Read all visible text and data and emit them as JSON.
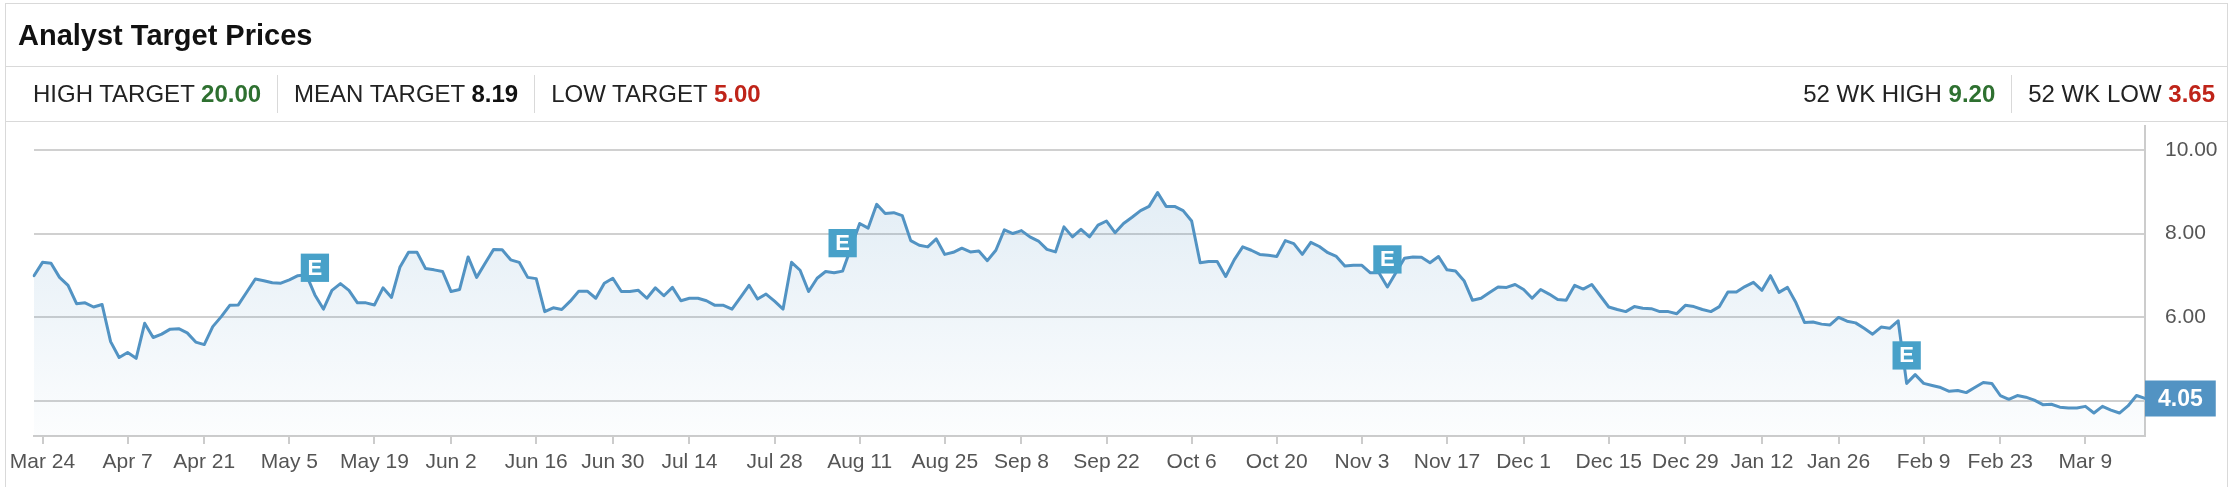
{
  "chart_data": {
    "type": "area",
    "title": "Analyst Target Prices",
    "annotations": [
      "HIGH TARGET 20.00",
      "MEAN TARGET 8.19",
      "LOW TARGET 5.00",
      "52 WK HIGH 9.20",
      "52 WK LOW 3.65"
    ],
    "categories": [
      null,
      "Mar 24",
      null,
      null,
      null,
      null,
      null,
      null,
      null,
      null,
      null,
      "Apr 7",
      null,
      null,
      null,
      null,
      null,
      null,
      null,
      null,
      "Apr 21",
      null,
      null,
      null,
      null,
      null,
      null,
      null,
      null,
      null,
      "May 5",
      null,
      null,
      null,
      null,
      null,
      null,
      null,
      null,
      null,
      "May 19",
      null,
      null,
      null,
      null,
      null,
      null,
      null,
      null,
      "Jun 2",
      null,
      null,
      null,
      null,
      null,
      null,
      null,
      null,
      null,
      "Jun 16",
      null,
      null,
      null,
      null,
      null,
      null,
      null,
      null,
      "Jun 30",
      null,
      null,
      null,
      null,
      null,
      null,
      null,
      null,
      "Jul 14",
      null,
      null,
      null,
      null,
      null,
      null,
      null,
      null,
      null,
      "Jul 28",
      null,
      null,
      null,
      null,
      null,
      null,
      null,
      null,
      null,
      "Aug 11",
      null,
      null,
      null,
      null,
      null,
      null,
      null,
      null,
      null,
      "Aug 25",
      null,
      null,
      null,
      null,
      null,
      null,
      null,
      null,
      "Sep 8",
      null,
      null,
      null,
      null,
      null,
      null,
      null,
      null,
      null,
      "Sep 22",
      null,
      null,
      null,
      null,
      null,
      null,
      null,
      null,
      null,
      "Oct 6",
      null,
      null,
      null,
      null,
      null,
      null,
      null,
      null,
      null,
      "Oct 20",
      null,
      null,
      null,
      null,
      null,
      null,
      null,
      null,
      null,
      "Nov 3",
      null,
      null,
      null,
      null,
      null,
      null,
      null,
      null,
      null,
      "Nov 17",
      null,
      null,
      null,
      null,
      null,
      null,
      null,
      null,
      "Dec 1",
      null,
      null,
      null,
      null,
      null,
      null,
      null,
      null,
      null,
      "Dec 15",
      null,
      null,
      null,
      null,
      null,
      null,
      null,
      null,
      "Dec 29",
      null,
      null,
      null,
      null,
      null,
      null,
      null,
      null,
      "Jan 12",
      null,
      null,
      null,
      null,
      null,
      null,
      null,
      null,
      "Jan 26",
      null,
      null,
      null,
      null,
      null,
      null,
      null,
      null,
      null,
      "Feb 9",
      null,
      null,
      null,
      null,
      null,
      null,
      null,
      null,
      "Feb 23",
      null,
      null,
      null,
      null,
      null,
      null,
      null,
      null,
      null,
      "Mar 9",
      null,
      null,
      null,
      null,
      null,
      null,
      null
    ],
    "series": [
      {
        "color": "#5293c3",
        "values": [
          6.99,
          7.31,
          7.29,
          6.95,
          6.76,
          6.32,
          6.34,
          6.24,
          6.3,
          5.41,
          5.03,
          5.15,
          5.01,
          5.85,
          5.51,
          5.59,
          5.71,
          5.72,
          5.62,
          5.4,
          5.34,
          5.77,
          6.01,
          6.28,
          6.29,
          6.6,
          6.91,
          6.87,
          6.82,
          6.81,
          6.89,
          6.99,
          7.01,
          6.53,
          6.19,
          6.64,
          6.8,
          6.64,
          6.34,
          6.34,
          6.29,
          6.7,
          6.47,
          7.2,
          7.55,
          7.55,
          7.16,
          7.13,
          7.09,
          6.61,
          6.66,
          7.44,
          6.95,
          7.29,
          7.62,
          7.61,
          7.37,
          7.31,
          6.95,
          6.92,
          6.13,
          6.22,
          6.18,
          6.38,
          6.62,
          6.62,
          6.45,
          6.81,
          6.93,
          6.61,
          6.61,
          6.64,
          6.45,
          6.7,
          6.51,
          6.71,
          6.39,
          6.45,
          6.45,
          6.39,
          6.28,
          6.28,
          6.19,
          6.47,
          6.76,
          6.43,
          6.55,
          6.38,
          6.19,
          7.31,
          7.12,
          6.61,
          6.93,
          7.09,
          7.06,
          7.1,
          null,
          8.24,
          8.13,
          8.7,
          8.48,
          8.5,
          8.43,
          7.83,
          7.72,
          7.68,
          7.87,
          7.5,
          7.55,
          7.65,
          7.56,
          7.58,
          7.35,
          7.6,
          8.09,
          8.0,
          8.07,
          7.92,
          7.82,
          7.62,
          7.56,
          8.16,
          7.92,
          8.1,
          7.92,
          8.2,
          8.3,
          8.02,
          8.24,
          8.39,
          8.55,
          8.65,
          8.98,
          8.65,
          8.65,
          8.55,
          8.3,
          7.3,
          7.33,
          7.33,
          6.97,
          7.37,
          7.68,
          7.6,
          7.5,
          7.48,
          7.45,
          7.83,
          7.76,
          7.5,
          7.79,
          7.69,
          7.54,
          7.45,
          7.22,
          7.24,
          7.24,
          7.06,
          7.06,
          6.72,
          null,
          7.41,
          7.44,
          7.43,
          7.3,
          7.45,
          7.13,
          7.1,
          6.87,
          6.4,
          6.45,
          6.59,
          6.72,
          6.71,
          6.78,
          6.66,
          6.45,
          6.66,
          6.55,
          6.42,
          6.4,
          6.76,
          6.67,
          6.78,
          6.51,
          6.24,
          6.18,
          6.13,
          6.25,
          6.21,
          6.2,
          6.13,
          6.13,
          6.08,
          6.28,
          6.25,
          6.18,
          6.13,
          6.25,
          6.6,
          6.6,
          6.73,
          6.83,
          6.64,
          6.99,
          6.59,
          6.71,
          6.34,
          5.87,
          5.88,
          5.83,
          5.81,
          5.99,
          5.9,
          5.86,
          5.73,
          5.59,
          5.76,
          5.73,
          5.91,
          4.41,
          4.62,
          4.41,
          4.36,
          4.31,
          4.22,
          4.24,
          4.19,
          4.31,
          4.43,
          4.41,
          4.12,
          4.03,
          4.12,
          4.08,
          4.01,
          3.9,
          3.91,
          3.84,
          3.82,
          3.82,
          3.86,
          3.7,
          3.86,
          3.77,
          3.7,
          3.87,
          4.12,
          4.05
        ],
        "value_labels": [
          null,
          null,
          null,
          null,
          null,
          null,
          null,
          null,
          null,
          null,
          null,
          null,
          null,
          null,
          null,
          null,
          null,
          null,
          null,
          null,
          null,
          null,
          null,
          null,
          null,
          null,
          null,
          null,
          null,
          null,
          null,
          null,
          null,
          null,
          null,
          null,
          null,
          null,
          null,
          null,
          null,
          null,
          null,
          null,
          null,
          null,
          null,
          null,
          null,
          null,
          null,
          null,
          null,
          null,
          null,
          null,
          null,
          null,
          null,
          null,
          null,
          null,
          null,
          null,
          null,
          null,
          null,
          null,
          null,
          null,
          null,
          null,
          null,
          null,
          null,
          null,
          null,
          null,
          null,
          null,
          null,
          null,
          null,
          null,
          null,
          null,
          null,
          null,
          null,
          null,
          null,
          null,
          null,
          null,
          null,
          null,
          null,
          null,
          null,
          null,
          null,
          null,
          null,
          null,
          null,
          null,
          null,
          null,
          null,
          null,
          null,
          null,
          null,
          null,
          null,
          null,
          null,
          null,
          null,
          null,
          null,
          null,
          null,
          null,
          null,
          null,
          null,
          null,
          null,
          null,
          null,
          null,
          null,
          null,
          null,
          null,
          null,
          null,
          null,
          null,
          null,
          null,
          null,
          null,
          null,
          null,
          null,
          null,
          null,
          null,
          null,
          null,
          null,
          null,
          null,
          null,
          null,
          null,
          null,
          null,
          null,
          null,
          null,
          null,
          null,
          null,
          null,
          null,
          null,
          null,
          null,
          null,
          null,
          null,
          null,
          null,
          null,
          null,
          null,
          null,
          null,
          null,
          null,
          null,
          null,
          null,
          null,
          null,
          null,
          null,
          null,
          null,
          null,
          null,
          null,
          null,
          null,
          null,
          null,
          null,
          null,
          null,
          null,
          null,
          null,
          null,
          null,
          null,
          null,
          null,
          null,
          null,
          null,
          null,
          null,
          null,
          null,
          null,
          null,
          null,
          null,
          null,
          null,
          null,
          null,
          null,
          null,
          null,
          null,
          null,
          null,
          null,
          null,
          null,
          null,
          null,
          null,
          null,
          null,
          null,
          null,
          null,
          null,
          null,
          null,
          null,
          null,
          null,
          "4.05"
        ]
      },
      {
        "type": "scatter",
        "marker": "square",
        "color": "#48a1c9",
        "values": [
          null,
          null,
          null,
          null,
          null,
          null,
          null,
          null,
          null,
          null,
          null,
          null,
          null,
          null,
          null,
          null,
          null,
          null,
          null,
          null,
          null,
          null,
          null,
          null,
          null,
          null,
          null,
          null,
          null,
          null,
          null,
          null,
          null,
          7.18,
          null,
          null,
          null,
          null,
          null,
          null,
          null,
          null,
          null,
          null,
          null,
          null,
          null,
          null,
          null,
          null,
          null,
          null,
          null,
          null,
          null,
          null,
          null,
          null,
          null,
          null,
          null,
          null,
          null,
          null,
          null,
          null,
          null,
          null,
          null,
          null,
          null,
          null,
          null,
          null,
          null,
          null,
          null,
          null,
          null,
          null,
          null,
          null,
          null,
          null,
          null,
          null,
          null,
          null,
          null,
          null,
          null,
          null,
          null,
          null,
          null,
          7.77,
          null,
          null,
          null,
          null,
          null,
          null,
          null,
          null,
          null,
          null,
          null,
          null,
          null,
          null,
          null,
          null,
          null,
          null,
          null,
          null,
          null,
          null,
          null,
          null,
          null,
          null,
          null,
          null,
          null,
          null,
          null,
          null,
          null,
          null,
          null,
          null,
          null,
          null,
          null,
          null,
          null,
          null,
          null,
          null,
          null,
          null,
          null,
          null,
          null,
          null,
          null,
          null,
          null,
          null,
          null,
          null,
          null,
          null,
          null,
          null,
          null,
          null,
          null,
          7.38,
          null,
          null,
          null,
          null,
          null,
          null,
          null,
          null,
          null,
          null,
          null,
          null,
          null,
          null,
          null,
          null,
          null,
          null,
          null,
          null,
          null,
          null,
          null,
          null,
          null,
          null,
          null,
          null,
          null,
          null,
          null,
          null,
          null,
          null,
          null,
          null,
          null,
          null,
          null,
          null,
          null,
          null,
          null,
          null,
          null,
          null,
          null,
          null,
          null,
          null,
          null,
          null,
          null,
          null,
          null,
          null,
          null,
          null,
          null,
          null,
          5.08,
          null,
          null,
          null,
          null,
          null,
          null,
          null,
          null,
          null,
          null,
          null,
          null,
          null,
          null,
          null,
          null,
          null,
          null,
          null,
          null,
          null,
          null,
          null,
          null,
          null,
          null,
          null,
          null
        ],
        "value_labels": [
          null,
          null,
          null,
          null,
          null,
          null,
          null,
          null,
          null,
          null,
          null,
          null,
          null,
          null,
          null,
          null,
          null,
          null,
          null,
          null,
          null,
          null,
          null,
          null,
          null,
          null,
          null,
          null,
          null,
          null,
          null,
          null,
          null,
          "E",
          null,
          null,
          null,
          null,
          null,
          null,
          null,
          null,
          null,
          null,
          null,
          null,
          null,
          null,
          null,
          null,
          null,
          null,
          null,
          null,
          null,
          null,
          null,
          null,
          null,
          null,
          null,
          null,
          null,
          null,
          null,
          null,
          null,
          null,
          null,
          null,
          null,
          null,
          null,
          null,
          null,
          null,
          null,
          null,
          null,
          null,
          null,
          null,
          null,
          null,
          null,
          null,
          null,
          null,
          null,
          null,
          null,
          null,
          null,
          null,
          null,
          "E",
          null,
          null,
          null,
          null,
          null,
          null,
          null,
          null,
          null,
          null,
          null,
          null,
          null,
          null,
          null,
          null,
          null,
          null,
          null,
          null,
          null,
          null,
          null,
          null,
          null,
          null,
          null,
          null,
          null,
          null,
          null,
          null,
          null,
          null,
          null,
          null,
          null,
          null,
          null,
          null,
          null,
          null,
          null,
          null,
          null,
          null,
          null,
          null,
          null,
          null,
          null,
          null,
          null,
          null,
          null,
          null,
          null,
          null,
          null,
          null,
          null,
          null,
          null,
          "E",
          null,
          null,
          null,
          null,
          null,
          null,
          null,
          null,
          null,
          null,
          null,
          null,
          null,
          null,
          null,
          null,
          null,
          null,
          null,
          null,
          null,
          null,
          null,
          null,
          null,
          null,
          null,
          null,
          null,
          null,
          null,
          null,
          null,
          null,
          null,
          null,
          null,
          null,
          null,
          null,
          null,
          null,
          null,
          null,
          null,
          null,
          null,
          null,
          null,
          null,
          null,
          null,
          null,
          null,
          null,
          null,
          null,
          null,
          null,
          null,
          "E",
          null,
          null,
          null,
          null,
          null,
          null,
          null,
          null,
          null,
          null,
          null,
          null,
          null,
          null,
          null,
          null,
          null,
          null,
          null,
          null,
          null,
          null,
          null,
          null,
          null,
          null,
          null,
          null
        ]
      }
    ],
    "ylim": [
      3.15,
      10.6
    ],
    "yticks": [
      {
        "value": 4,
        "label": null
      },
      {
        "value": 6,
        "label": "6.00"
      },
      {
        "value": 8,
        "label": "8.00"
      },
      {
        "value": 10,
        "label": "10.00"
      }
    ],
    "grid": "y",
    "marker": "none"
  }
}
